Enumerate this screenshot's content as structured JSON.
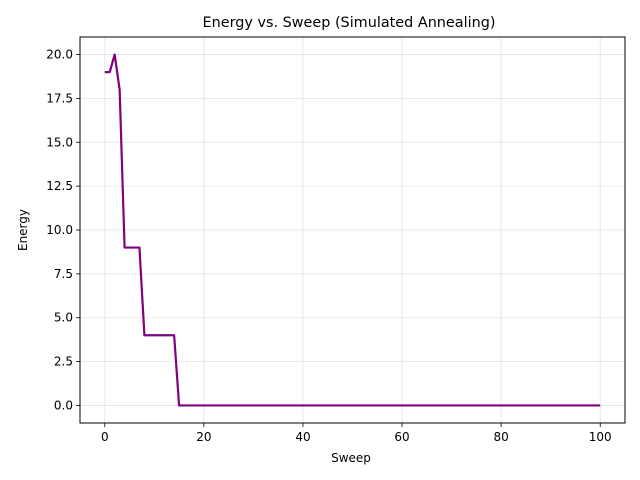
{
  "chart_data": {
    "type": "line",
    "title": "Energy vs. Sweep (Simulated Annealing)",
    "xlabel": "Sweep",
    "ylabel": "Energy",
    "xlim": [
      -5,
      105
    ],
    "ylim": [
      -1,
      21
    ],
    "xticks": [
      0,
      20,
      40,
      60,
      80,
      100
    ],
    "xtick_labels": [
      "0",
      "20",
      "40",
      "60",
      "80",
      "100"
    ],
    "yticks": [
      0,
      2.5,
      5,
      7.5,
      10,
      12.5,
      15,
      17.5,
      20
    ],
    "ytick_labels": [
      "0.0",
      "2.5",
      "5.0",
      "7.5",
      "10.0",
      "12.5",
      "15.0",
      "17.5",
      "20.0"
    ],
    "grid": true,
    "series": [
      {
        "color": "#800080",
        "x": [
          0,
          1,
          2,
          3,
          4,
          5,
          6,
          7,
          8,
          9,
          10,
          11,
          12,
          13,
          14,
          15,
          16,
          17,
          18,
          19,
          20,
          25,
          30,
          35,
          40,
          45,
          50,
          55,
          60,
          65,
          70,
          75,
          80,
          85,
          90,
          95,
          100
        ],
        "y": [
          19,
          19,
          20,
          18,
          9,
          9,
          9,
          9,
          4,
          4,
          4,
          4,
          4,
          4,
          4,
          0,
          0,
          0,
          0,
          0,
          0,
          0,
          0,
          0,
          0,
          0,
          0,
          0,
          0,
          0,
          0,
          0,
          0,
          0,
          0,
          0,
          0
        ]
      }
    ]
  }
}
